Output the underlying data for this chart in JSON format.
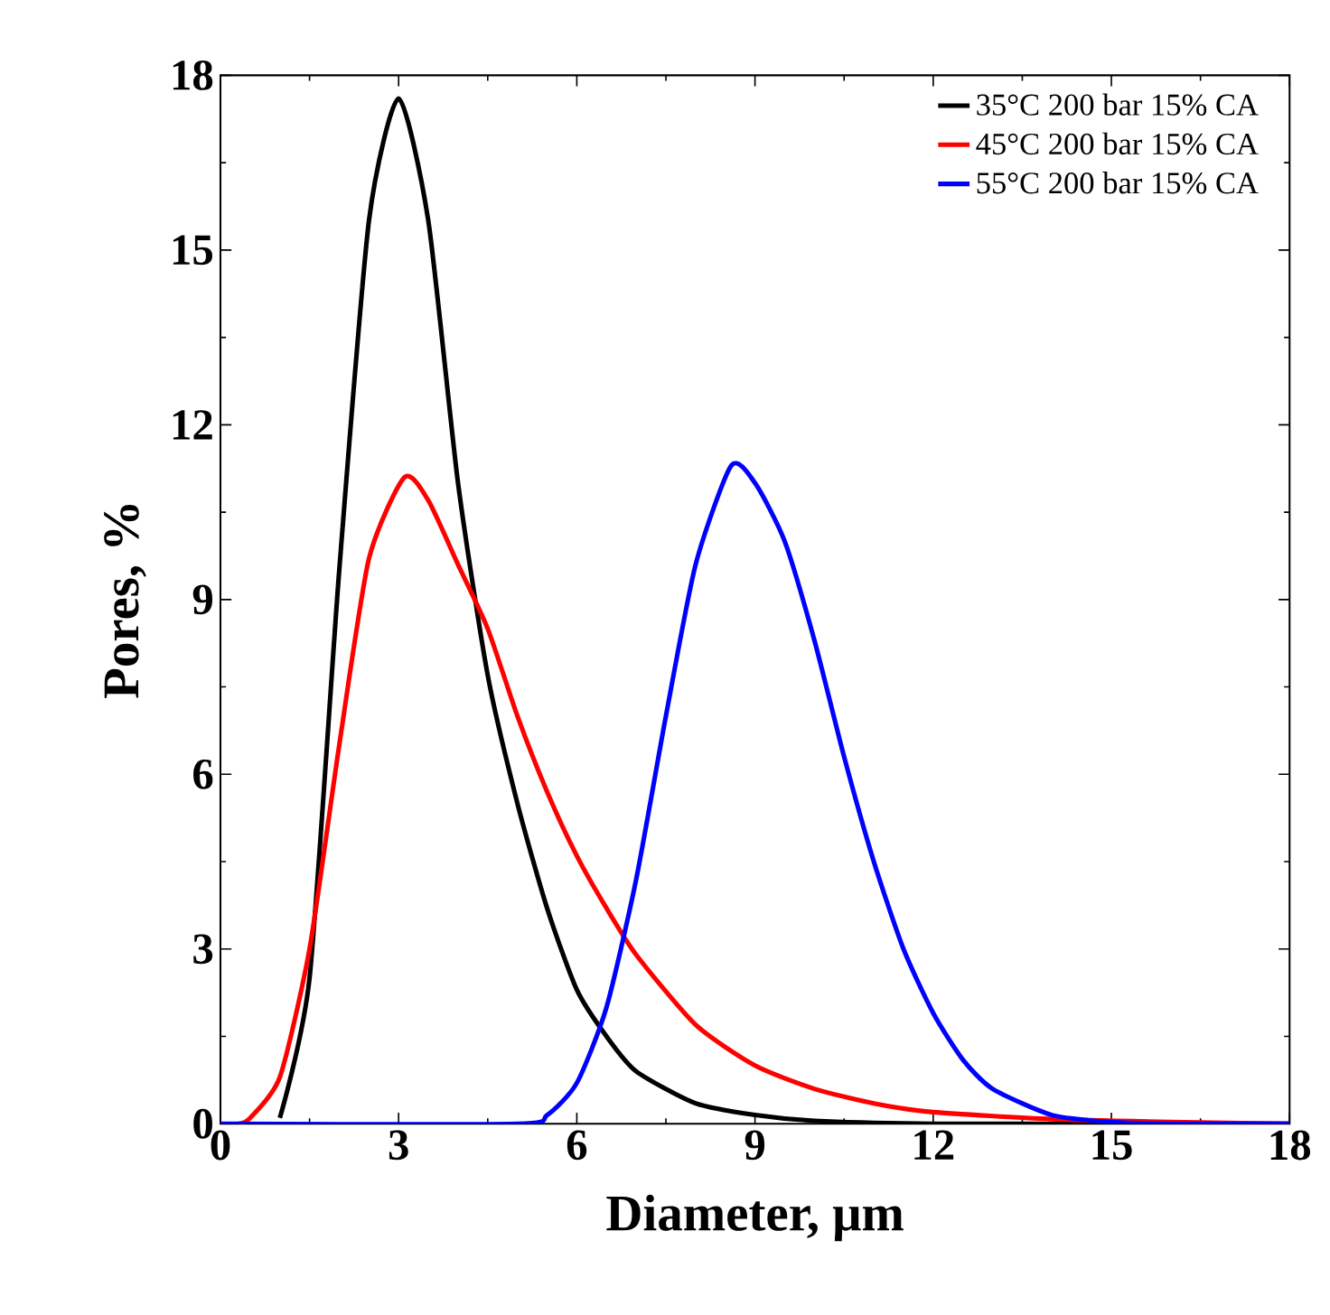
{
  "chart_data": {
    "type": "line",
    "xlabel": "Diameter, μm",
    "ylabel": "Pores, %",
    "xlim": [
      0,
      18
    ],
    "ylim": [
      0,
      18
    ],
    "xticks": [
      0,
      3,
      6,
      9,
      12,
      15,
      18
    ],
    "yticks": [
      0,
      3,
      6,
      9,
      12,
      15,
      18
    ],
    "legend": "top right",
    "grid": false,
    "marker": "none",
    "line_style": "solid",
    "series": [
      {
        "name": "35°C  200 bar  15% CA",
        "color": "#000000",
        "x": [
          1.0,
          1.5,
          2,
          2.5,
          3,
          3.5,
          4,
          4.5,
          5,
          5.5,
          6,
          6.5,
          7,
          8,
          9,
          10,
          12,
          15,
          18
        ],
        "values": [
          0.1,
          2.5,
          9.5,
          15.5,
          17.6,
          15.5,
          11,
          7.7,
          5.5,
          3.7,
          2.3,
          1.5,
          0.9,
          0.35,
          0.15,
          0.05,
          0,
          0,
          0
        ]
      },
      {
        "name": "45°C  200 bar  15% CA",
        "color": "#ff0000",
        "x": [
          0.3,
          0.5,
          1,
          1.5,
          2,
          2.5,
          3.1,
          3.5,
          4,
          4.5,
          5,
          5.5,
          6,
          6.5,
          7,
          8,
          9,
          10,
          11,
          12,
          14,
          16,
          18
        ],
        "values": [
          0,
          0.1,
          0.8,
          3,
          6.5,
          9.7,
          11.1,
          10.7,
          9.6,
          8.5,
          7.0,
          5.7,
          4.6,
          3.7,
          2.9,
          1.7,
          1.0,
          0.6,
          0.35,
          0.2,
          0.08,
          0.03,
          0
        ]
      },
      {
        "name": "55°C  200 bar  15% CA",
        "color": "#0000ff",
        "x": [
          0,
          5,
          5.5,
          6,
          6.5,
          7,
          7.5,
          8,
          8.6,
          9,
          9.5,
          10,
          10.5,
          11,
          11.5,
          12,
          12.5,
          13,
          14,
          15,
          16,
          18
        ],
        "values": [
          0,
          0,
          0.15,
          0.7,
          2.0,
          4.2,
          7,
          9.6,
          11.3,
          11.0,
          10.0,
          8.3,
          6.3,
          4.5,
          3.0,
          1.9,
          1.1,
          0.6,
          0.15,
          0.03,
          0,
          0
        ]
      }
    ]
  }
}
